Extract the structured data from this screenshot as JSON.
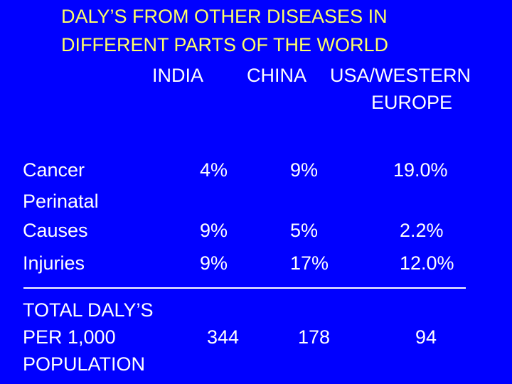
{
  "title": {
    "line1": "DALY’S FROM OTHER DISEASES IN",
    "line2": "DIFFERENT PARTS OF THE WORLD"
  },
  "columns": {
    "india": "INDIA",
    "china": "CHINA",
    "usa_line1": "USA/WESTERN",
    "usa_line2": "EUROPE"
  },
  "rows": [
    {
      "label_lines": [
        "Cancer"
      ],
      "india": "4%",
      "china": "9%",
      "usa": "19.0%"
    },
    {
      "label_lines": [
        "Perinatal",
        "Causes"
      ],
      "india": "9%",
      "china": "5%",
      "usa": "2.2%"
    },
    {
      "label_lines": [
        "Injuries"
      ],
      "india": "9%",
      "china": "17%",
      "usa": "12.0%"
    }
  ],
  "total": {
    "label_lines": [
      "TOTAL DALY’S",
      "PER 1,000",
      "POPULATION"
    ],
    "india": "344",
    "china": "178",
    "usa": "94"
  },
  "colors": {
    "background": "#0000FF",
    "title": "#FFFF66",
    "text": "#FFFFFF"
  }
}
